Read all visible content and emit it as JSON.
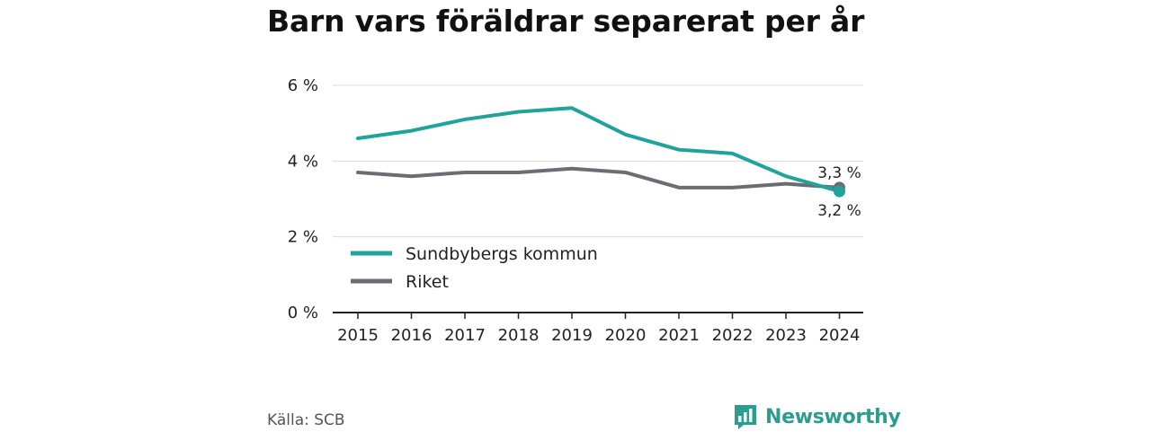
{
  "title": "Barn vars föräldrar separerat per år",
  "source": "Källa: SCB",
  "brand": {
    "name": "Newsworthy",
    "icon": "bar-chart-logo-icon",
    "color": "#2a9d8f"
  },
  "chart_data": {
    "type": "line",
    "x": [
      "2015",
      "2016",
      "2017",
      "2018",
      "2019",
      "2020",
      "2021",
      "2022",
      "2023",
      "2024"
    ],
    "yticks": [
      "0 %",
      "2 %",
      "4 %",
      "6 %"
    ],
    "ytick_values": [
      0,
      2,
      4,
      6
    ],
    "ylim": [
      0,
      6
    ],
    "grid": true,
    "legend_position": "bottom-left",
    "series": [
      {
        "name": "Sundbybergs kommun",
        "color": "#1fa39b",
        "values": [
          4.6,
          4.8,
          5.1,
          5.3,
          5.4,
          4.7,
          4.3,
          4.2,
          3.6,
          3.2
        ]
      },
      {
        "name": "Riket",
        "color": "#6d6b73",
        "values": [
          3.7,
          3.6,
          3.7,
          3.7,
          3.8,
          3.7,
          3.3,
          3.3,
          3.4,
          3.3
        ]
      }
    ],
    "end_labels": [
      "3,2 %",
      "3,3 %"
    ]
  }
}
